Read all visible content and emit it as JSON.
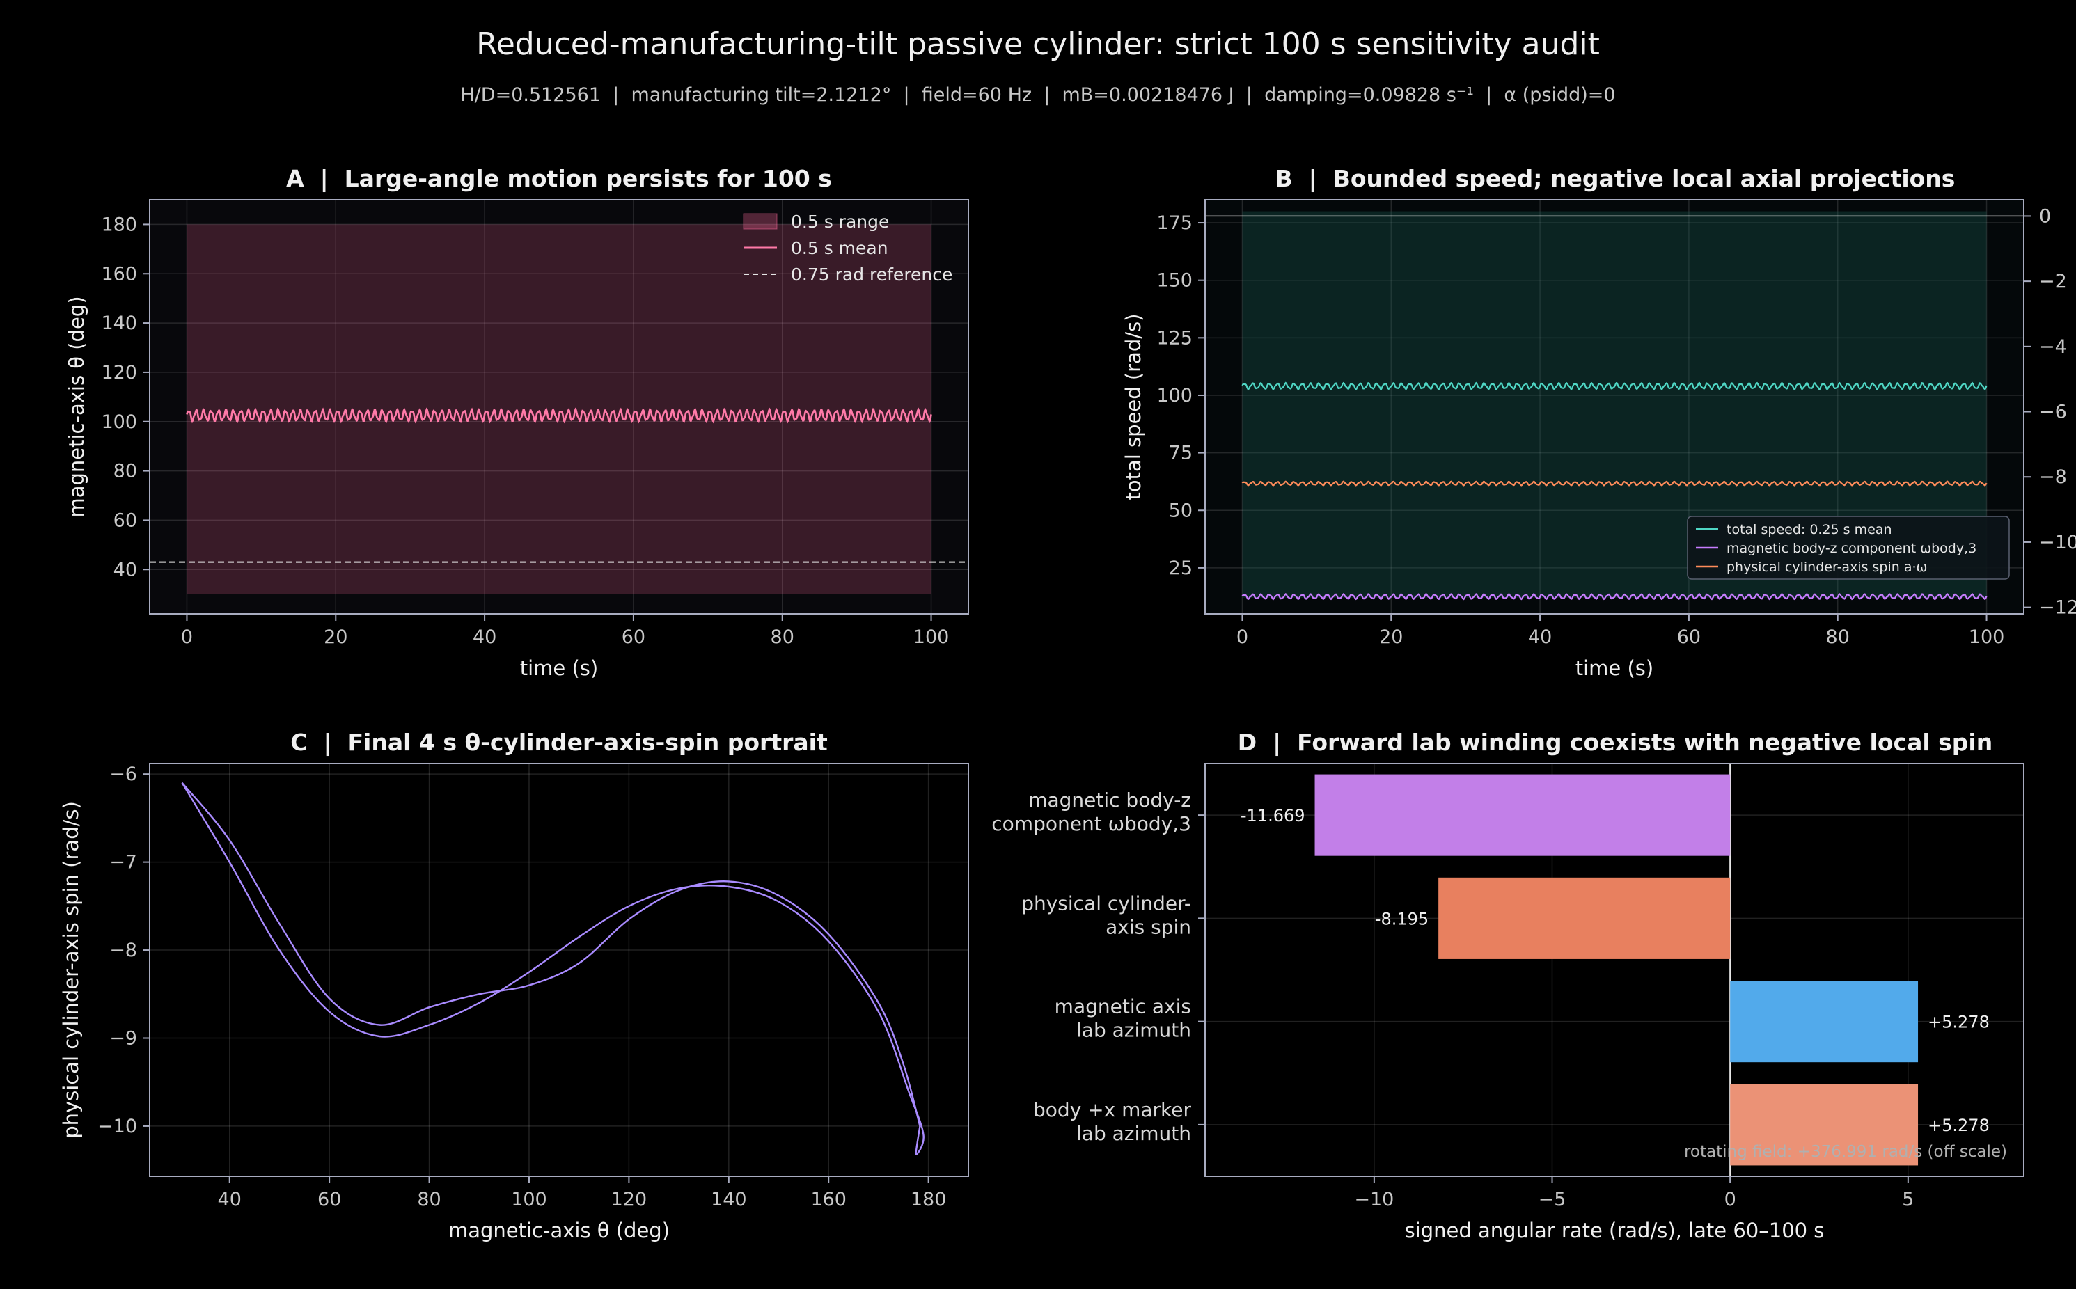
{
  "figure": {
    "title": "Reduced-manufacturing-tilt passive cylinder: strict 100 s sensitivity audit",
    "subtitle": "H/D=0.512561  |  manufacturing tilt=2.1212°  |  field=60 Hz  |  mB=0.00218476 J  |  damping=0.09828 s⁻¹  |  α (psidd)=0",
    "background": "#000000"
  },
  "chart_data": [
    {
      "id": "A",
      "type": "line",
      "title": "A  |  Large-angle motion persists for 100 s",
      "xlabel": "time (s)",
      "ylabel": "magnetic-axis θ (deg)",
      "xlim": [
        -5,
        105
      ],
      "ylim": [
        22,
        190
      ],
      "xticks": [
        0,
        20,
        40,
        60,
        80,
        100
      ],
      "yticks": [
        40,
        60,
        80,
        100,
        120,
        140,
        160,
        180
      ],
      "grid": true,
      "legend": "top-right",
      "legend_entries": [
        "0.5 s range",
        "0.5 s mean",
        "0.75 rad reference"
      ],
      "band": {
        "name": "0.5 s range",
        "x": [
          0,
          100
        ],
        "low": 30,
        "high": 180,
        "color": "#ff6b9d"
      },
      "mean": {
        "name": "0.5 s mean",
        "x_start": 0,
        "x_end": 100,
        "center": 102.5,
        "amplitude": 2.5,
        "cycles": 100,
        "color": "#ff7aa8"
      },
      "reference": {
        "name": "0.75 rad reference",
        "y": 43.0,
        "color": "#e6e6e6"
      }
    },
    {
      "id": "B",
      "type": "line",
      "title": "B  |  Bounded speed; negative local axial projections",
      "xlabel": "time (s)",
      "ylabel": "total speed (rad/s)",
      "xlim": [
        -5,
        105
      ],
      "ylim": [
        5,
        185
      ],
      "xticks": [
        0,
        20,
        40,
        60,
        80,
        100
      ],
      "yticks": [
        25,
        50,
        75,
        100,
        125,
        150,
        175
      ],
      "y2lim": [
        -12.2,
        0.5
      ],
      "y2ticks": [
        0,
        -2,
        -4,
        -6,
        -8,
        -10,
        -12
      ],
      "y2tick_labels": [
        "0",
        "−2",
        "−4",
        "−6",
        "−8",
        "−10",
        "−12"
      ],
      "grid": true,
      "legend": "lower-right",
      "legend_entries": [
        "total speed: 0.25 s mean",
        "magnetic body-z component ωbody,3",
        "physical cylinder-axis spin a·ω"
      ],
      "band": {
        "x": [
          0,
          100
        ],
        "low": 12,
        "high": 180,
        "color": "#1a5a50"
      },
      "series": [
        {
          "name": "total speed: 0.25 s mean",
          "axis": "left",
          "center": 104,
          "amplitude": 1.4,
          "color": "#4fd6c4"
        },
        {
          "name": "magnetic body-z component ωbody,3",
          "axis": "right",
          "center": -11.67,
          "amplitude": 0.08,
          "color": "#c77dff"
        },
        {
          "name": "physical cylinder-axis spin a·ω",
          "axis": "right",
          "center": -8.2,
          "amplitude": 0.06,
          "color": "#ff8c5a"
        }
      ]
    },
    {
      "id": "C",
      "type": "line",
      "title": "C  |  Final 4 s θ-cylinder-axis-spin portrait",
      "xlabel": "magnetic-axis θ (deg)",
      "ylabel": "physical cylinder-axis spin (rad/s)",
      "xlim": [
        24,
        188
      ],
      "ylim": [
        -10.57,
        -5.88
      ],
      "xticks": [
        40,
        60,
        80,
        100,
        120,
        140,
        160,
        180
      ],
      "yticks": [
        -6,
        -7,
        -8,
        -9,
        -10
      ],
      "ytick_labels": [
        "−6",
        "−7",
        "−8",
        "−9",
        "−10"
      ],
      "grid": true,
      "color": "#a98bff",
      "loops": [
        [
          [
            30.5,
            -6.1
          ],
          [
            40,
            -7.0
          ],
          [
            50,
            -8.0
          ],
          [
            60,
            -8.7
          ],
          [
            70,
            -8.98
          ],
          [
            80,
            -8.85
          ],
          [
            90,
            -8.6
          ],
          [
            100,
            -8.25
          ],
          [
            110,
            -7.85
          ],
          [
            120,
            -7.5
          ],
          [
            130,
            -7.3
          ],
          [
            140,
            -7.28
          ],
          [
            150,
            -7.45
          ],
          [
            160,
            -7.9
          ],
          [
            170,
            -8.7
          ],
          [
            176,
            -9.6
          ],
          [
            179,
            -10.1
          ],
          [
            177.5,
            -10.32
          ],
          [
            178.3,
            -10.0
          ]
        ],
        [
          [
            178.3,
            -10.0
          ],
          [
            175,
            -9.3
          ],
          [
            170,
            -8.6
          ],
          [
            160,
            -7.82
          ],
          [
            150,
            -7.38
          ],
          [
            140,
            -7.22
          ],
          [
            130,
            -7.32
          ],
          [
            120,
            -7.65
          ],
          [
            110,
            -8.15
          ],
          [
            100,
            -8.4
          ],
          [
            90,
            -8.5
          ],
          [
            80,
            -8.65
          ],
          [
            70,
            -8.85
          ],
          [
            60,
            -8.55
          ],
          [
            50,
            -7.7
          ],
          [
            40,
            -6.75
          ],
          [
            30.5,
            -6.1
          ]
        ]
      ]
    },
    {
      "id": "D",
      "type": "bar",
      "orientation": "horizontal",
      "title": "D  |  Forward lab winding coexists with negative local spin",
      "xlabel": "signed angular rate (rad/s), late 60–100 s",
      "xlim": [
        -14.75,
        8.25
      ],
      "xticks": [
        -10,
        -5,
        0,
        5
      ],
      "xtick_labels": [
        "−10",
        "−5",
        "0",
        "5"
      ],
      "grid": true,
      "categories": [
        "magnetic body-z\ncomponent ωbody,3",
        "physical cylinder-\naxis spin",
        "magnetic axis\nlab azimuth",
        "body +x marker\nlab azimuth"
      ],
      "values": [
        -11.669,
        -8.195,
        5.278,
        5.278
      ],
      "value_labels": [
        "-11.669",
        "-8.195",
        "+5.278",
        "+5.278"
      ],
      "colors": [
        "#c27fe8",
        "#e8805f",
        "#52aaeb",
        "#eb9276"
      ],
      "annotation": "rotating field: +376.991 rad/s (off scale)"
    }
  ]
}
